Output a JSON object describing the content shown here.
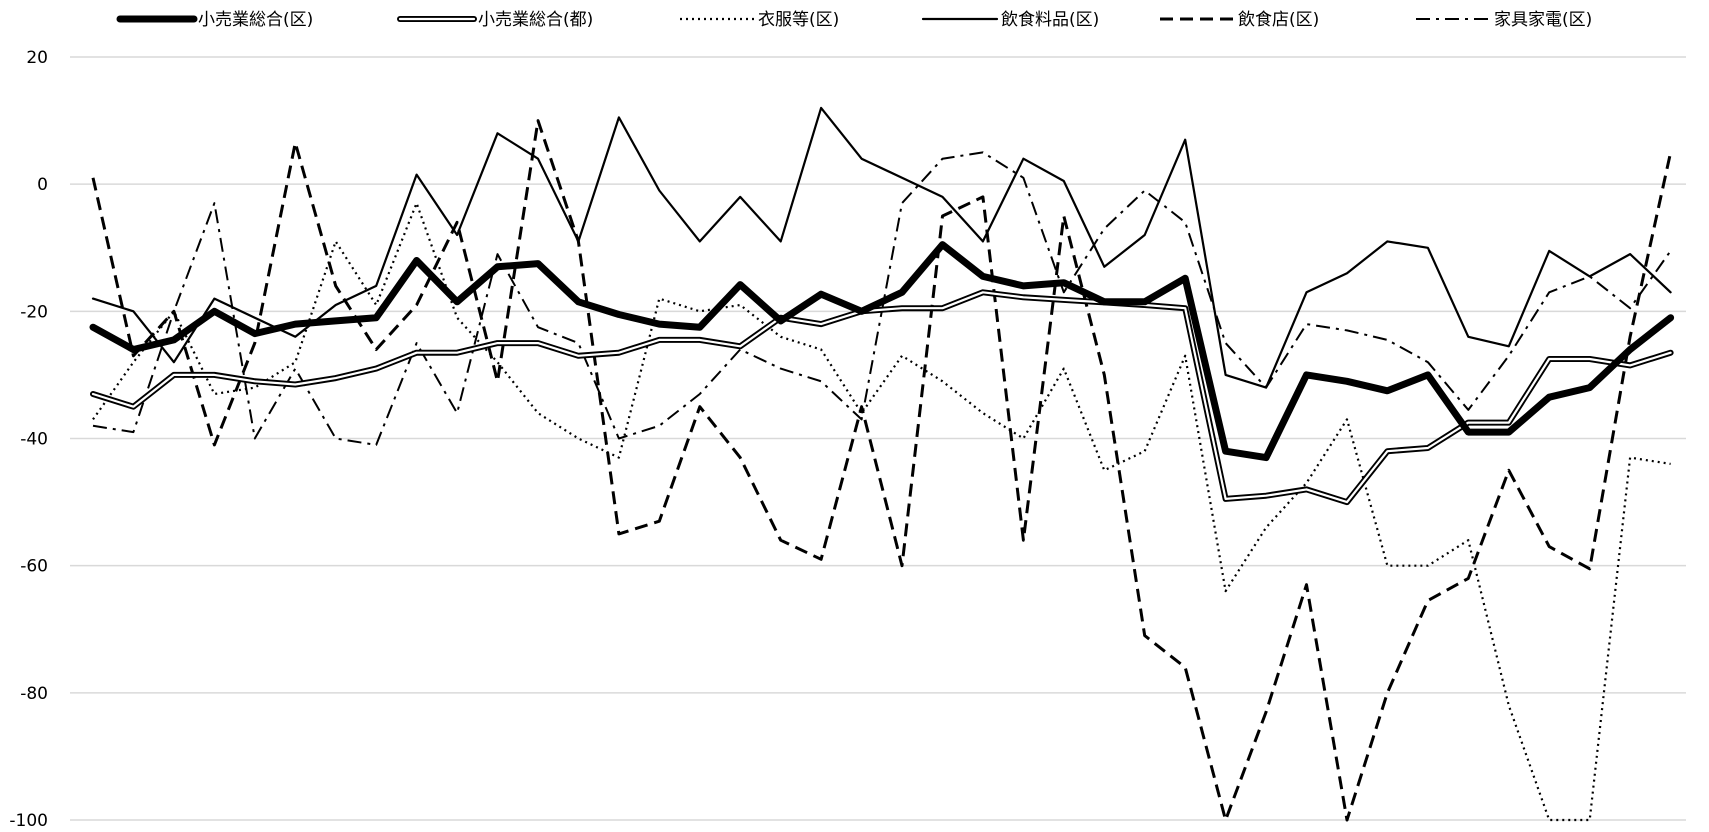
{
  "chart_data": {
    "type": "line",
    "title": "",
    "xlabel": "",
    "ylabel": "",
    "ylim": [
      -100,
      20
    ],
    "yticks": [
      20,
      0,
      -20,
      -40,
      -60,
      -80,
      -100
    ],
    "grid": "horizontal",
    "legend_position": "top",
    "series": [
      {
        "name": "小売業総合(区)",
        "style": "bold",
        "values": [
          -22.5,
          -26,
          -24.5,
          -20,
          -23.5,
          -22,
          -21.5,
          -21,
          -12,
          -18.5,
          -13,
          -12.5,
          -18.5,
          -20.5,
          -22,
          -22.5,
          -15.8,
          -21.5,
          -17.3,
          -20,
          -17,
          -9.5,
          -14.5,
          -16,
          -15.5,
          -18.5,
          -18.5,
          -14.8,
          -42,
          -43,
          -30,
          -31,
          -32.5,
          -30,
          -39,
          -39,
          -33.5,
          -32,
          -26,
          -21
        ]
      },
      {
        "name": "小売業総合(都)",
        "style": "double",
        "values": [
          -33,
          -35,
          -30,
          -30,
          -31,
          -31.5,
          -30.5,
          -29,
          -26.5,
          -26.5,
          -25,
          -25,
          -27,
          -26.5,
          -24.5,
          -24.5,
          -25.5,
          -21,
          -22,
          -20,
          -19.5,
          -19.5,
          -17,
          -17.8,
          -18.2,
          -18.6,
          -19,
          -19.5,
          -49.5,
          -49,
          -48,
          -50,
          -42,
          -41.5,
          -37.5,
          -37.5,
          -27.5,
          -27.5,
          -28.5,
          -26.5
        ]
      },
      {
        "name": "衣服等(区)",
        "style": "dotted",
        "values": [
          -37,
          -28,
          -20,
          -33,
          -32,
          -28,
          -9,
          -19,
          -3,
          -21,
          -28,
          -36,
          -40,
          -43,
          -18,
          -20,
          -19,
          -24,
          -26,
          -36,
          -27,
          -31,
          -36,
          -40,
          -29,
          -45,
          -42,
          -27,
          -64,
          -54,
          -47,
          -37,
          -60,
          -60,
          -56,
          -82,
          -100,
          -100,
          -43,
          -44
        ]
      },
      {
        "name": "飲食料品(区)",
        "style": "solid",
        "values": [
          -18,
          -20,
          -28,
          -18,
          -21,
          -24,
          -19,
          -16,
          1.5,
          -8,
          8,
          4,
          -9,
          10.5,
          -1,
          -9,
          -2,
          -9,
          12,
          4,
          1,
          -2,
          -9,
          4,
          0.5,
          -13,
          -8,
          7,
          -30,
          -32,
          -17,
          -14,
          -9,
          -10,
          -24,
          -25.5,
          -10.5,
          -14.5,
          -11,
          -17
        ]
      },
      {
        "name": "飲食店(区)",
        "style": "dashed",
        "values": [
          1,
          -27,
          -20,
          -41,
          -25,
          6.5,
          -16,
          -26,
          -19,
          -6,
          -31,
          10,
          -9,
          -55,
          -53,
          -35,
          -43,
          -56,
          -59,
          -35,
          -60,
          -5,
          -2,
          -56,
          -5,
          -30,
          -71,
          -76,
          -100,
          -83,
          -63,
          -100,
          -80,
          -65.5,
          -62,
          -45,
          -57,
          -60.5,
          -24,
          5
        ]
      },
      {
        "name": "家具家電(区)",
        "style": "dashdot",
        "values": [
          -38,
          -39,
          -20,
          -3,
          -40,
          -29,
          -40,
          -41,
          -25,
          -36,
          -11,
          -22.5,
          -25,
          -40,
          -38,
          -33,
          -26,
          -29,
          -31,
          -37,
          -3,
          4,
          5,
          1,
          -17,
          -7,
          -1,
          -6,
          -25,
          -32,
          -22,
          -23,
          -24.5,
          -28,
          -35.5,
          -27,
          -17,
          -14.5,
          -19.5,
          -10.5
        ]
      }
    ]
  }
}
